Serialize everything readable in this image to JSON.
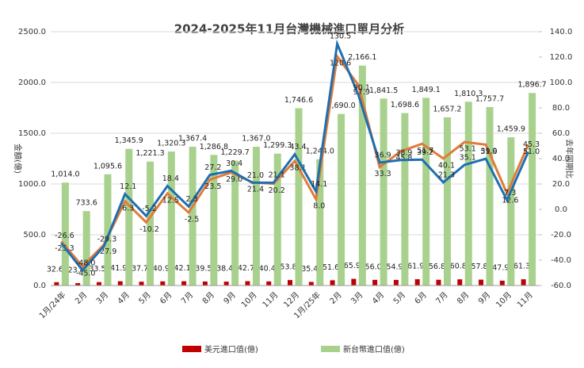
{
  "chart_data": {
    "type": "bar-line",
    "title": "2024-2025年11月台灣機械進口單月分析",
    "y_label": "金額(億)",
    "y2_label": "去年同期比",
    "categories": [
      "1月/24年",
      "2月",
      "3月",
      "4月",
      "5月",
      "6月",
      "7月",
      "8月",
      "9月",
      "10月",
      "11月",
      "12月",
      "1月/25年",
      "2月",
      "3月",
      "4月",
      "5月",
      "6月",
      "7月",
      "8月",
      "9月",
      "10月",
      "11月"
    ],
    "ylim": [
      0,
      2500
    ],
    "yticks": [
      {
        "value": 0,
        "label": "0.0"
      },
      {
        "value": 500,
        "label": "500.0"
      },
      {
        "value": 1000,
        "label": "1000.0"
      },
      {
        "value": 1500,
        "label": "1500.0"
      },
      {
        "value": 2000,
        "label": "2000.0"
      },
      {
        "value": 2500,
        "label": "2500.0"
      }
    ],
    "y2lim": [
      -60,
      140
    ],
    "y2ticks": [
      {
        "value": -60,
        "label": "-60.0"
      },
      {
        "value": -40,
        "label": "-40.0"
      },
      {
        "value": -20,
        "label": "-20.0"
      },
      {
        "value": 0,
        "label": "0.0"
      },
      {
        "value": 20,
        "label": "20.0"
      },
      {
        "value": 40,
        "label": "40.0"
      },
      {
        "value": 60,
        "label": "60.0"
      },
      {
        "value": 80,
        "label": "80.0"
      },
      {
        "value": 100,
        "label": "100.0"
      },
      {
        "value": 120,
        "label": "120.0"
      },
      {
        "value": 140,
        "label": "140.0"
      }
    ],
    "series": [
      {
        "name": "美元進口值(億)",
        "kind": "bar",
        "color": "#c00000",
        "values": [
          32.6,
          23.4,
          33.5,
          41.9,
          37.7,
          40.9,
          42.1,
          39.5,
          38.4,
          42.7,
          40.4,
          53.8,
          35.4,
          51.6,
          65.9,
          56.0,
          54.9,
          61.9,
          56.8,
          60.8,
          57.8,
          47.9,
          61.3
        ],
        "value_labels": [
          "32.6",
          "23.4",
          "33.5",
          "41.9",
          "37.7",
          "40.9",
          "42.1",
          "39.5",
          "38.4",
          "42.7",
          "40.4",
          "53.8",
          "35.4",
          "51.6",
          "65.9",
          "56.0",
          "54.9",
          "61.9",
          "56.8",
          "60.8",
          "57.8",
          "47.9",
          "61.3"
        ]
      },
      {
        "name": "新台幣進口值(億)",
        "kind": "bar",
        "color": "#a9d18e",
        "values": [
          1014.0,
          733.6,
          1095.6,
          1345.9,
          1221.3,
          1320.3,
          1367.4,
          1286.8,
          1229.7,
          1367.0,
          1299.3,
          1746.6,
          1244.0,
          1690.0,
          2166.1,
          1841.5,
          1698.6,
          1849.1,
          1657.2,
          1810.3,
          1757.7,
          1459.9,
          1896.7
        ],
        "value_labels": [
          "1,014.0",
          "733.6",
          "1,095.6",
          "1,345.9",
          "1,221.3",
          "1,320.3",
          "1,367.4",
          "1,286.8",
          "1,229.7",
          "1,367.0",
          "1,299.3",
          "1,746.6",
          "1,244.0",
          "1,690.0",
          "2,166.1",
          "1,841.5",
          "1,698.6",
          "1,849.1",
          "1,657.2",
          "1,810.3",
          "1,757.7",
          "1,459.9",
          "1,896.7"
        ]
      },
      {
        "kind": "line",
        "axis": "y2",
        "color": "#e07b39",
        "values": [
          -25.3,
          -45.0,
          -27.9,
          6.3,
          -10.2,
          12.5,
          -2.5,
          23.5,
          29.0,
          21.4,
          20.2,
          38.1,
          8.0,
          120.6,
          97.9,
          33.3,
          45.8,
          51.7,
          40.1,
          53.1,
          51.0,
          12.6,
          51.0
        ],
        "value_labels": [
          "-25.3",
          "-45.0",
          "-27.9",
          "6.3",
          "-10.2",
          "12.5",
          "-2.5",
          "23.5",
          "29.0",
          "21.4",
          "20.2",
          "38.1",
          "8.0",
          "120.6",
          "97.9",
          "33.3",
          "45.8",
          "51.7",
          "40.1",
          "53.1",
          "51.0",
          "12.6",
          "51.0"
        ]
      },
      {
        "kind": "line",
        "axis": "y2",
        "color": "#1f6fb0",
        "values": [
          -26.6,
          -48.0,
          -29.3,
          12.1,
          -5.2,
          18.4,
          2.3,
          27.2,
          30.4,
          21.0,
          21.1,
          43.4,
          14.1,
          130.5,
          90.1,
          36.9,
          38.9,
          39.2,
          21.3,
          35.1,
          39.9,
          7.3,
          45.3
        ],
        "value_labels": [
          "-26.6",
          "-48.0",
          "-29.3",
          "12.1",
          "-5.2",
          "18.4",
          "2.3",
          "27.2",
          "30.4",
          "21.0",
          "21.1",
          "43.4",
          "14.1",
          "130.5",
          "90.1",
          "36.9",
          "38.9",
          "39.2",
          "21.3",
          "35.1",
          "39.9",
          "7.3",
          "45.3"
        ]
      }
    ]
  }
}
